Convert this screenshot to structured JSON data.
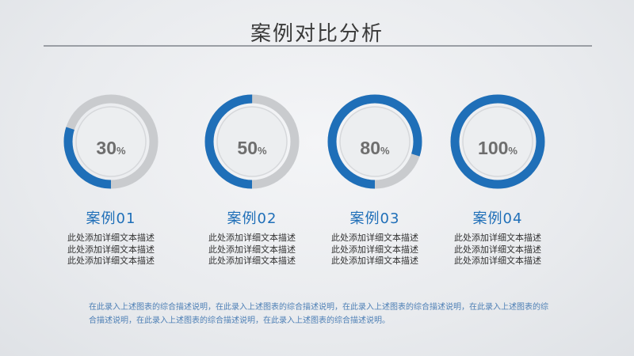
{
  "page": {
    "title": "案例对比分析"
  },
  "colors": {
    "accent": "#1f6fb8",
    "track": "#c9cbce",
    "inner": "#eceef0"
  },
  "chart_data": {
    "type": "pie",
    "categories": [
      "案例01",
      "案例02",
      "案例03",
      "案例04"
    ],
    "values": [
      30,
      50,
      80,
      100
    ],
    "labels": [
      "30%",
      "50%",
      "80%",
      "100%"
    ],
    "unit": "%"
  },
  "cases": [
    {
      "title": "案例01",
      "pct": "30",
      "sign": "%",
      "desc": "此处添加详细文本描述此处添加详细文本描述此处添加详细文本描述"
    },
    {
      "title": "案例02",
      "pct": "50",
      "sign": "%",
      "desc": "此处添加详细文本描述此处添加详细文本描述此处添加详细文本描述"
    },
    {
      "title": "案例03",
      "pct": "80",
      "sign": "%",
      "desc": "此处添加详细文本描述此处添加详细文本描述此处添加详细文本描述"
    },
    {
      "title": "案例04",
      "pct": "100",
      "sign": "%",
      "desc": "此处添加详细文本描述此处添加详细文本描述此处添加详细文本描述"
    }
  ],
  "footer": {
    "text": "在此录入上述图表的综合描述说明，在此录入上述图表的综合描述说明，在此录入上述图表的综合描述说明，在此录入上述图表的综合描述说明，在此录入上述图表的综合描述说明，在此录入上述图表的综合描述说明。"
  }
}
